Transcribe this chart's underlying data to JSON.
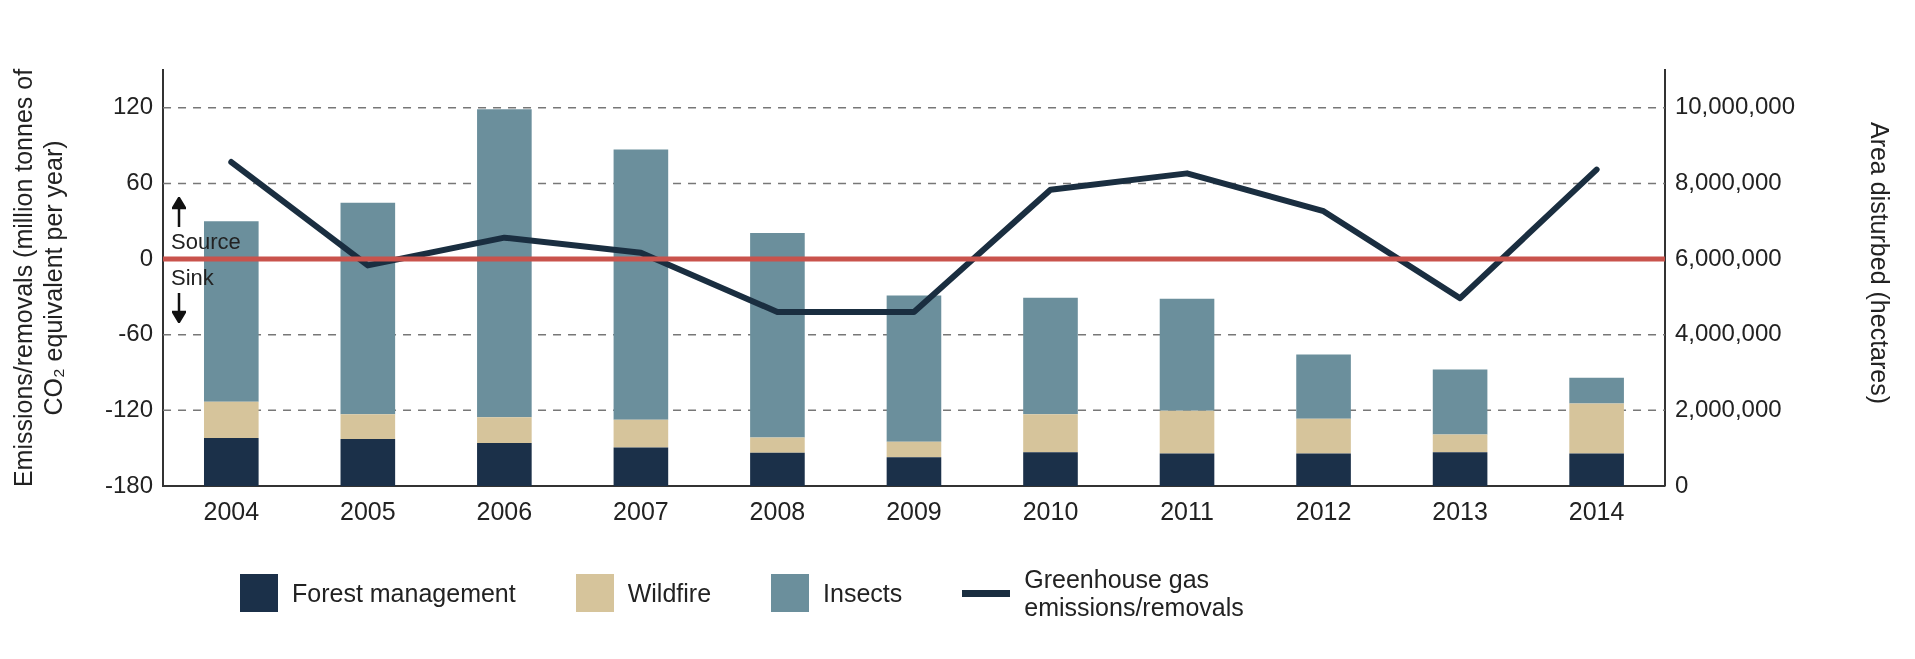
{
  "chart_data": {
    "type": "bar",
    "stacked": true,
    "categories": [
      "2004",
      "2005",
      "2006",
      "2007",
      "2008",
      "2009",
      "2010",
      "2011",
      "2012",
      "2013",
      "2014"
    ],
    "series": [
      {
        "name": "Forest management",
        "color": "#1b3049",
        "axis": "y2",
        "values": [
          1270000,
          1240000,
          1140000,
          1020000,
          880000,
          760000,
          890000,
          860000,
          860000,
          890000,
          860000
        ]
      },
      {
        "name": "Wildfire",
        "color": "#d6c49b",
        "axis": "y2",
        "values": [
          960000,
          660000,
          680000,
          730000,
          400000,
          410000,
          1010000,
          1130000,
          920000,
          470000,
          1320000
        ]
      },
      {
        "name": "Insects",
        "color": "#6b8f9c",
        "axis": "y2",
        "values": [
          4770000,
          5590000,
          8140000,
          7150000,
          5410000,
          3870000,
          3080000,
          2960000,
          1700000,
          1720000,
          680000
        ]
      },
      {
        "name": "Greenhouse gas emissions/removals",
        "type": "line",
        "color": "#1a2e40",
        "axis": "y",
        "values": [
          77,
          -5,
          17,
          5,
          -42,
          -42,
          55,
          68,
          38,
          -31,
          71
        ]
      }
    ],
    "ylabel": "Emissions/removals (million tonnes of CO₂ equivalent per year)",
    "y2label": "Area disturbed (hectares)",
    "ylim": [
      -180,
      150
    ],
    "yticks": [
      -180,
      -120,
      -60,
      0,
      60,
      120
    ],
    "y2lim": [
      0,
      11000000
    ],
    "y2ticks": [
      0,
      {
        "value": 2000000,
        "label": "2,000,000"
      },
      {
        "value": 4000000,
        "label": "4,000,000"
      },
      {
        "value": 6000000,
        "label": "6,000,000"
      },
      {
        "value": 8000000,
        "label": "8,000,000"
      },
      {
        "value": 10000000,
        "label": "10,000,000"
      }
    ],
    "ref_lines": [
      {
        "axis": "y",
        "value": 0,
        "color": "#c9534c"
      }
    ],
    "annotations": [
      "Source",
      "Sink"
    ],
    "grid": "y",
    "legend": "bottom",
    "marker": "none",
    "line_style": "solid"
  }
}
